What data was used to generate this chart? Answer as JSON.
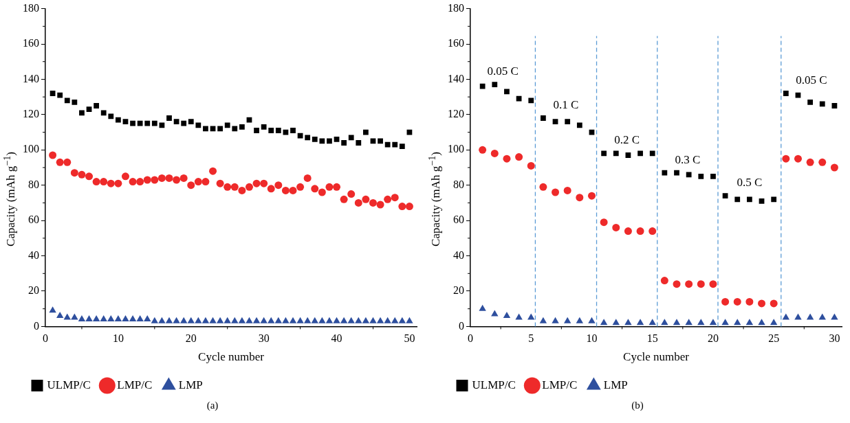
{
  "chart_data": [
    {
      "type": "scatter",
      "xlabel": "Cycle number",
      "ylabel": "Capacity (mAh g$^{−1}$)",
      "title": "(a)",
      "x": [
        1,
        2,
        3,
        4,
        5,
        6,
        7,
        8,
        9,
        10,
        11,
        12,
        13,
        14,
        15,
        16,
        17,
        18,
        19,
        20,
        21,
        22,
        23,
        24,
        25,
        26,
        27,
        28,
        29,
        30,
        31,
        32,
        33,
        34,
        35,
        36,
        37,
        38,
        39,
        40,
        41,
        42,
        43,
        44,
        45,
        46,
        47,
        48,
        49,
        50
      ],
      "xlim": [
        0,
        51
      ],
      "xticks": [
        0,
        10,
        20,
        30,
        40,
        50
      ],
      "ylim": [
        0,
        180
      ],
      "yticks": [
        0,
        20,
        40,
        60,
        80,
        100,
        120,
        140,
        160,
        180
      ],
      "grid": false,
      "legend": "bottom",
      "series": [
        {
          "name": "ULMP/C",
          "color": "#000000",
          "marker": "square",
          "values": [
            132,
            131,
            128,
            127,
            121,
            123,
            125,
            121,
            119,
            117,
            116,
            115,
            115,
            115,
            115,
            114,
            118,
            116,
            115,
            116,
            114,
            112,
            112,
            112,
            114,
            112,
            113,
            117,
            111,
            113,
            111,
            111,
            110,
            111,
            108,
            107,
            106,
            105,
            105,
            106,
            104,
            107,
            104,
            110,
            105,
            105,
            103,
            103,
            102,
            110
          ]
        },
        {
          "name": "LMP/C",
          "color": "#ee2a2a",
          "marker": "circle",
          "values": [
            97,
            93,
            93,
            87,
            86,
            85,
            82,
            82,
            81,
            81,
            85,
            82,
            82,
            83,
            83,
            84,
            84,
            83,
            84,
            80,
            82,
            82,
            88,
            81,
            79,
            79,
            77,
            79,
            81,
            81,
            78,
            80,
            77,
            77,
            79,
            84,
            78,
            76,
            79,
            79,
            72,
            75,
            70,
            72,
            70,
            69,
            72,
            73,
            68,
            68
          ]
        },
        {
          "name": "LMP",
          "color": "#2e4f9e",
          "marker": "triangle",
          "values": [
            9,
            6,
            5,
            5,
            4,
            4,
            4,
            4,
            4,
            4,
            4,
            4,
            4,
            4,
            3,
            3,
            3,
            3,
            3,
            3,
            3,
            3,
            3,
            3,
            3,
            3,
            3,
            3,
            3,
            3,
            3,
            3,
            3,
            3,
            3,
            3,
            3,
            3,
            3,
            3,
            3,
            3,
            3,
            3,
            3,
            3,
            3,
            3,
            3,
            3
          ]
        }
      ]
    },
    {
      "type": "scatter",
      "xlabel": "Cycle number",
      "ylabel": "Capacity (mAh g$^{−1}$)",
      "x": [
        1,
        2,
        3,
        4,
        5,
        6,
        7,
        8,
        9,
        10,
        11,
        12,
        13,
        14,
        15,
        16,
        17,
        18,
        19,
        20,
        21,
        22,
        23,
        24,
        25,
        26,
        27,
        28,
        29,
        30
      ],
      "xlim": [
        0,
        30.6
      ],
      "xticks": [
        0,
        5,
        10,
        15,
        20,
        25,
        30
      ],
      "ylim": [
        0,
        180
      ],
      "yticks": [
        0,
        20,
        40,
        60,
        80,
        100,
        120,
        140,
        160,
        180
      ],
      "grid": false,
      "legend": "bottom",
      "title": "(b)",
      "annotations": [
        "0.05 C",
        "0.1 C",
        "0.2 C",
        "0.3 C",
        "0.5 C",
        "0.05 C"
      ],
      "ref_lines": [
        {
          "axis": "x",
          "value": 5.35,
          "color": "#5b9bd5",
          "line_style": "dashed"
        },
        {
          "axis": "x",
          "value": 10.4,
          "color": "#5b9bd5",
          "line_style": "dashed"
        },
        {
          "axis": "x",
          "value": 15.4,
          "color": "#5b9bd5",
          "line_style": "dashed"
        },
        {
          "axis": "x",
          "value": 20.4,
          "color": "#5b9bd5",
          "line_style": "dashed"
        },
        {
          "axis": "x",
          "value": 25.6,
          "color": "#5b9bd5",
          "line_style": "dashed"
        }
      ],
      "series": [
        {
          "name": "ULMP/C",
          "color": "#000000",
          "marker": "square",
          "values": [
            136,
            137,
            133,
            129,
            128,
            118,
            116,
            116,
            114,
            110,
            98,
            98,
            97,
            98,
            98,
            87,
            87,
            86,
            85,
            85,
            74,
            72,
            72,
            71,
            72,
            132,
            131,
            127,
            126,
            125
          ]
        },
        {
          "name": "LMP/C",
          "color": "#ee2a2a",
          "marker": "circle",
          "values": [
            100,
            98,
            95,
            96,
            91,
            79,
            76,
            77,
            73,
            74,
            59,
            56,
            54,
            54,
            54,
            26,
            24,
            24,
            24,
            24,
            14,
            14,
            14,
            13,
            13,
            95,
            95,
            93,
            93,
            90
          ]
        },
        {
          "name": "LMP",
          "color": "#2e4f9e",
          "marker": "triangle",
          "values": [
            10,
            7,
            6,
            5,
            5,
            3,
            3,
            3,
            3,
            3,
            2,
            2,
            2,
            2,
            2,
            2,
            2,
            2,
            2,
            2,
            2,
            2,
            2,
            2,
            2,
            5,
            5,
            5,
            5,
            5
          ]
        }
      ]
    }
  ]
}
